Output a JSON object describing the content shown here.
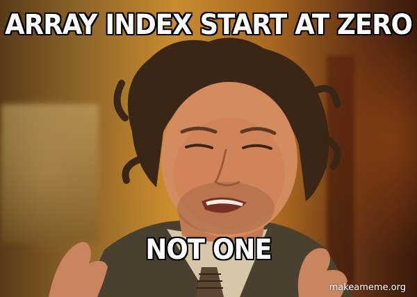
{
  "meme": {
    "top_text": "ARRAY INDEX START AT ZERO",
    "bottom_text": "NOT ONE",
    "watermark": "makeameme.org"
  },
  "colors": {
    "caption_fill": "#ffffff",
    "caption_outline": "#000000",
    "background_warm": "#c98c2e"
  },
  "icons": [
    "person-photo"
  ]
}
